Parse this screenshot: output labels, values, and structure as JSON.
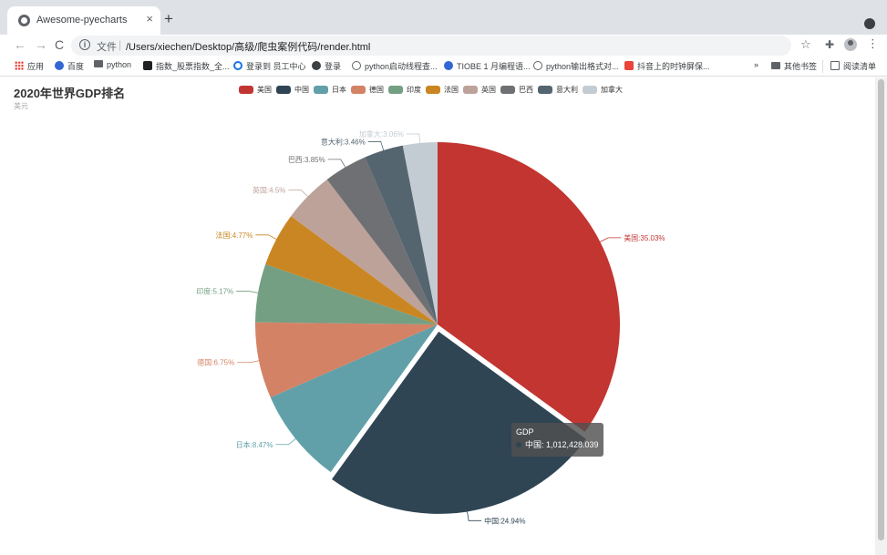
{
  "browser": {
    "tab_title": "Awesome-pyecharts",
    "tab_close": "×",
    "new_tab": "+",
    "omnibox_file_label": "文件",
    "url": "/Users/xiechen/Desktop/高级/爬虫案例代码/render.html",
    "nav": {
      "back": "←",
      "forward": "→",
      "reload": "C"
    }
  },
  "bookmarks": {
    "items": [
      {
        "label": "应用",
        "icon": "apps-grid-icon"
      },
      {
        "label": "百度",
        "icon": "baidu-paw-icon"
      },
      {
        "label": "python",
        "icon": "folder-icon"
      },
      {
        "label": "指数_股票指数_全...",
        "icon": "site-icon"
      },
      {
        "label": "登录到 员工中心",
        "icon": "login-icon"
      },
      {
        "label": "登录",
        "icon": "globe-icon"
      },
      {
        "label": "python启动线程查...",
        "icon": "script-icon"
      },
      {
        "label": "TIOBE 1 月编程语...",
        "icon": "baidu-paw-icon"
      },
      {
        "label": "python输出格式对...",
        "icon": "script-icon"
      },
      {
        "label": "抖音上的时钟屏保...",
        "icon": "c-icon"
      }
    ],
    "overflow": "»",
    "other": "其他书签",
    "reading_list": "阅读清单"
  },
  "chart_data": {
    "type": "pie",
    "title": "2020年世界GDP排名",
    "subtitle": "美元",
    "legend_position": "top",
    "slices": [
      {
        "name": "美国",
        "legend": "美国",
        "percent": 35.03,
        "label": "美国:35.03%",
        "color": "#c23531"
      },
      {
        "name": "中国",
        "legend": "中国",
        "percent": 24.94,
        "label": "中国:24.94%",
        "color": "#2f4554"
      },
      {
        "name": "日本",
        "legend": "日本",
        "percent": 8.47,
        "label": "日本:8.47%",
        "color": "#61a0a8"
      },
      {
        "name": "德国",
        "legend": "德国",
        "percent": 6.75,
        "label": "德国:6.75%",
        "color": "#d48265"
      },
      {
        "name": "印度",
        "legend": "印度",
        "percent": 5.17,
        "label": "印度:5.17%",
        "color": "#749f83"
      },
      {
        "name": "法国",
        "legend": "法国",
        "percent": 4.77,
        "label": "法国:4.77%",
        "color": "#ca8622"
      },
      {
        "name": "英国",
        "legend": "英国",
        "percent": 4.5,
        "label": "英国:4.5%",
        "color": "#bda29a"
      },
      {
        "name": "巴西",
        "legend": "巴西",
        "percent": 3.85,
        "label": "巴西:3.85%",
        "color": "#6e7074"
      },
      {
        "name": "意大利",
        "legend": "意大利",
        "percent": 3.46,
        "label": "意大利:3.46%",
        "color": "#546570"
      },
      {
        "name": "加拿大",
        "legend": "加拿大",
        "percent": 3.06,
        "label": "加拿大:3.06%",
        "color": "#c4ccd3"
      }
    ],
    "tooltip": {
      "series": "GDP",
      "text": "中国: 1,012,428.039",
      "highlighted": "中国"
    }
  }
}
